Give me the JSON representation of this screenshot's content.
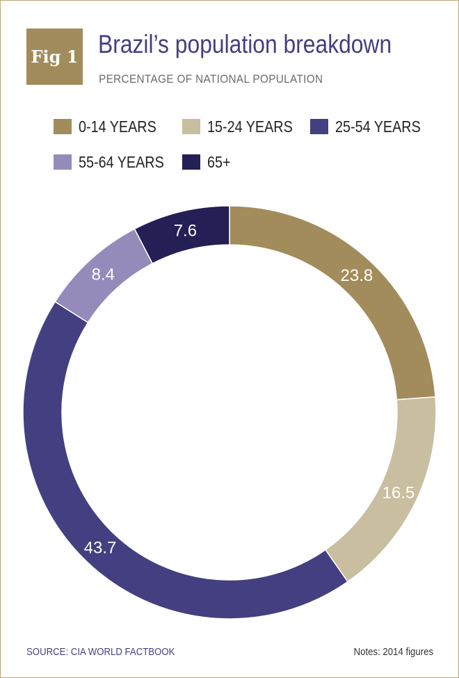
{
  "header": {
    "badge": "Fig 1",
    "title": "Brazil’s population breakdown",
    "subtitle": "PERCENTAGE OF NATIONAL POPULATION"
  },
  "chart_data": {
    "type": "pie",
    "variant": "donut",
    "title": "Brazil’s population breakdown",
    "subtitle": "PERCENTAGE OF NATIONAL POPULATION",
    "unit": "%",
    "legend_position": "top",
    "slices": [
      {
        "label": "0-14 YEARS",
        "value": 23.8,
        "display": "23.8",
        "color": "#a28c5b"
      },
      {
        "label": "15-24 YEARS",
        "value": 16.5,
        "display": "16.5",
        "color": "#c9bea0"
      },
      {
        "label": "25-54 YEARS",
        "value": 43.7,
        "display": "43.7",
        "color": "#433f80"
      },
      {
        "label": "55-64 YEARS",
        "value": 8.4,
        "display": "8.4",
        "color": "#958bba"
      },
      {
        "label": "65+",
        "value": 7.6,
        "display": "7.6",
        "color": "#241f54"
      }
    ]
  },
  "footer": {
    "source": "SOURCE: CIA WORLD FACTBOOK",
    "notes": "Notes: 2014 figures"
  }
}
